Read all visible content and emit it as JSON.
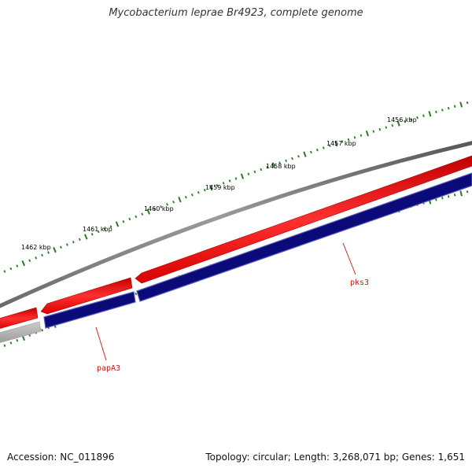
{
  "title": "Mycobacterium leprae Br4923, complete genome",
  "accession": "Accession: NC_011896",
  "summary": "Topology: circular; Length: 3,268,071 bp; Genes: 1,651",
  "colors": {
    "outer_track": "#777777",
    "forward_gene": "#ee1111",
    "reverse_gene": "#0a0a78",
    "reverse_gene_edge": "#5555bb",
    "partial_gene": "#aaaaaa",
    "tick": "#2a7a22",
    "gene_label": "#cc1111"
  },
  "ruler": {
    "labels": [
      "1456 kbp",
      "1457 kbp",
      "1458 kbp",
      "1459 kbp",
      "1460 kbp",
      "1461 kbp",
      "1462 kbp"
    ]
  },
  "genes": [
    {
      "name": "pks3",
      "strand": "reverse"
    },
    {
      "name": "papA3",
      "strand": "reverse"
    }
  ]
}
